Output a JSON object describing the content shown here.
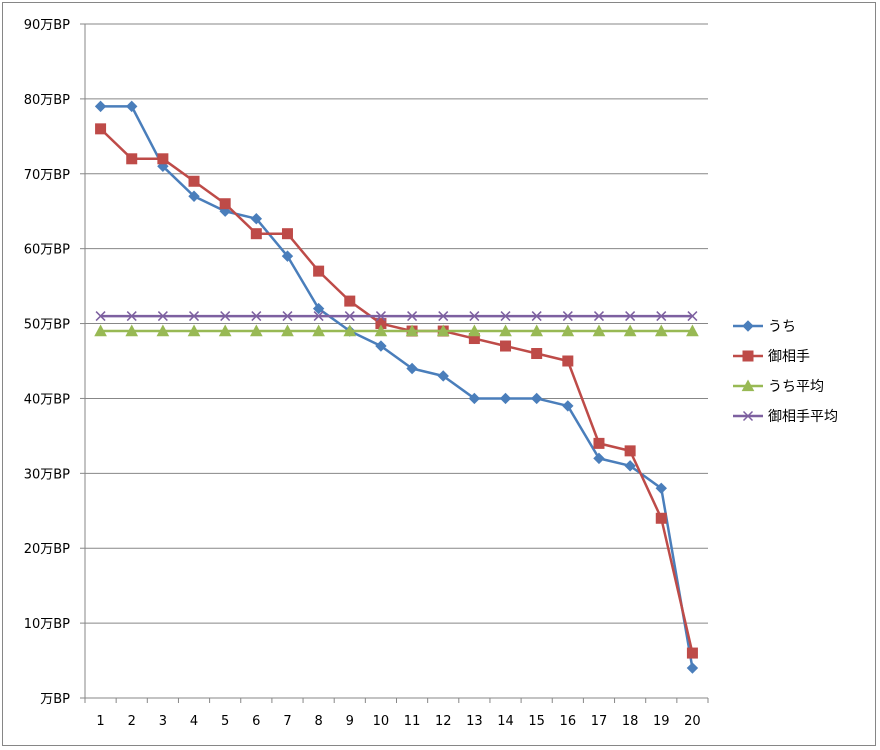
{
  "chart_data": {
    "type": "line",
    "title": "",
    "xlabel": "",
    "ylabel": "",
    "categories": [
      "1",
      "2",
      "3",
      "4",
      "5",
      "6",
      "7",
      "8",
      "9",
      "10",
      "11",
      "12",
      "13",
      "14",
      "15",
      "16",
      "17",
      "18",
      "19",
      "20"
    ],
    "y_tick_labels": [
      "万BP",
      "10万BP",
      "20万BP",
      "30万BP",
      "40万BP",
      "50万BP",
      "60万BP",
      "70万BP",
      "80万BP",
      "90万BP"
    ],
    "ylim": [
      0,
      90
    ],
    "grid": true,
    "legend_position": "right",
    "series": [
      {
        "name": "うち",
        "color": "#4a7ebb",
        "marker": "diamond",
        "values": [
          79,
          79,
          71,
          67,
          65,
          64,
          59,
          52,
          49,
          47,
          44,
          43,
          40,
          40,
          40,
          39,
          32,
          31,
          28,
          4
        ]
      },
      {
        "name": "御相手",
        "color": "#be4b48",
        "marker": "square",
        "values": [
          76,
          72,
          72,
          69,
          66,
          62,
          62,
          57,
          53,
          50,
          49,
          49,
          48,
          47,
          46,
          45,
          34,
          33,
          24,
          6
        ]
      },
      {
        "name": "うち平均",
        "color": "#98b954",
        "marker": "triangle",
        "values": [
          49,
          49,
          49,
          49,
          49,
          49,
          49,
          49,
          49,
          49,
          49,
          49,
          49,
          49,
          49,
          49,
          49,
          49,
          49,
          49
        ]
      },
      {
        "name": "御相手平均",
        "color": "#7d60a0",
        "marker": "x",
        "values": [
          51,
          51,
          51,
          51,
          51,
          51,
          51,
          51,
          51,
          51,
          51,
          51,
          51,
          51,
          51,
          51,
          51,
          51,
          51,
          51
        ]
      }
    ]
  }
}
